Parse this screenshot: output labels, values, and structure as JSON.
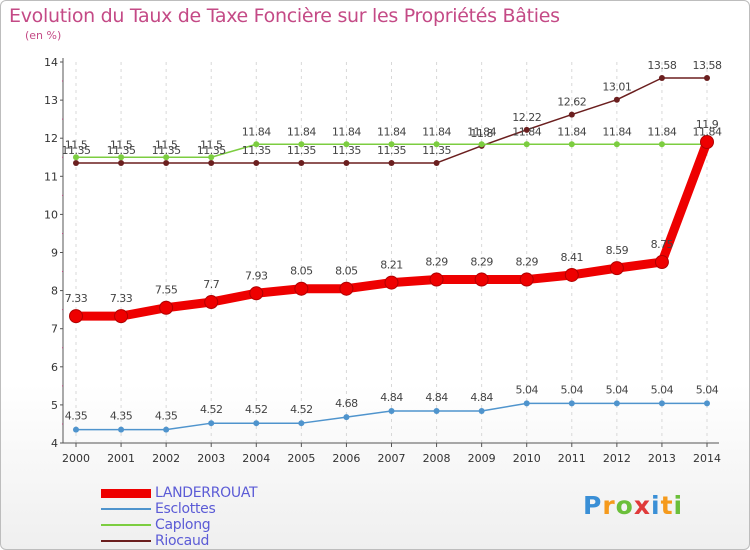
{
  "chart_data": {
    "type": "line",
    "title": "Evolution du Taux de Taxe Foncière sur les Propriétés Bâties",
    "unit_label": "(en %)",
    "xlabel": "",
    "ylabel": "",
    "ylim": [
      4,
      14
    ],
    "yticks": [
      "4",
      "5",
      "6",
      "7",
      "8",
      "9",
      "10",
      "11",
      "12",
      "13",
      "14"
    ],
    "categories": [
      "2000",
      "2001",
      "2002",
      "2003",
      "2004",
      "2005",
      "2006",
      "2007",
      "2008",
      "2009",
      "2010",
      "2011",
      "2012",
      "2013",
      "2014"
    ],
    "series": [
      {
        "name": "LANDERROUAT",
        "color": "#ee0000",
        "values": [
          7.33,
          7.33,
          7.55,
          7.7,
          7.93,
          8.05,
          8.05,
          8.21,
          8.29,
          8.29,
          8.29,
          8.41,
          8.59,
          8.75,
          11.9
        ],
        "labels": [
          "7.33",
          "7.33",
          "7.55",
          "7.7",
          "7.93",
          "8.05",
          "8.05",
          "8.21",
          "8.29",
          "8.29",
          "8.29",
          "8.41",
          "8.59",
          "8.75",
          "11.9"
        ]
      },
      {
        "name": "Esclottes",
        "color": "#4f94cd",
        "values": [
          4.35,
          4.35,
          4.35,
          4.52,
          4.52,
          4.52,
          4.68,
          4.84,
          4.84,
          4.84,
          5.04,
          5.04,
          5.04,
          5.04,
          5.04
        ],
        "labels": [
          "4.35",
          "4.35",
          "4.35",
          "4.52",
          "4.52",
          "4.52",
          "4.68",
          "4.84",
          "4.84",
          "4.84",
          "5.04",
          "5.04",
          "5.04",
          "5.04",
          "5.04"
        ]
      },
      {
        "name": "Caplong",
        "color": "#7ccd40",
        "values": [
          11.5,
          11.5,
          11.5,
          11.5,
          11.84,
          11.84,
          11.84,
          11.84,
          11.84,
          11.84,
          11.84,
          11.84,
          11.84,
          11.84,
          11.84
        ],
        "labels": [
          "11.5",
          "11.5",
          "11.5",
          "11.5",
          "11.84",
          "11.84",
          "11.84",
          "11.84",
          "11.84",
          "11.84",
          "11.84",
          "11.84",
          "11.84",
          "11.84",
          "11.84"
        ]
      },
      {
        "name": "Riocaud",
        "color": "#6b1f1f",
        "values": [
          11.35,
          11.35,
          11.35,
          11.35,
          11.35,
          11.35,
          11.35,
          11.35,
          11.35,
          11.8,
          12.22,
          12.62,
          13.01,
          13.58,
          13.58
        ],
        "labels": [
          "11.35",
          "11.35",
          "11.35",
          "11.35",
          "11.35",
          "11.35",
          "11.35",
          "11.35",
          "11.35",
          "11.8",
          "12.22",
          "12.62",
          "13.01",
          "13.58",
          "13.58"
        ]
      }
    ],
    "legend_position": "bottom-left"
  },
  "branding": {
    "logo_letters": [
      "P",
      "r",
      "o",
      "x",
      "i",
      "t",
      "i"
    ],
    "logo_colors": [
      "#3a8fd6",
      "#f59a1c",
      "#6bbf3a",
      "#e03a3a",
      "#3a8fd6",
      "#f59a1c",
      "#6bbf3a"
    ]
  }
}
